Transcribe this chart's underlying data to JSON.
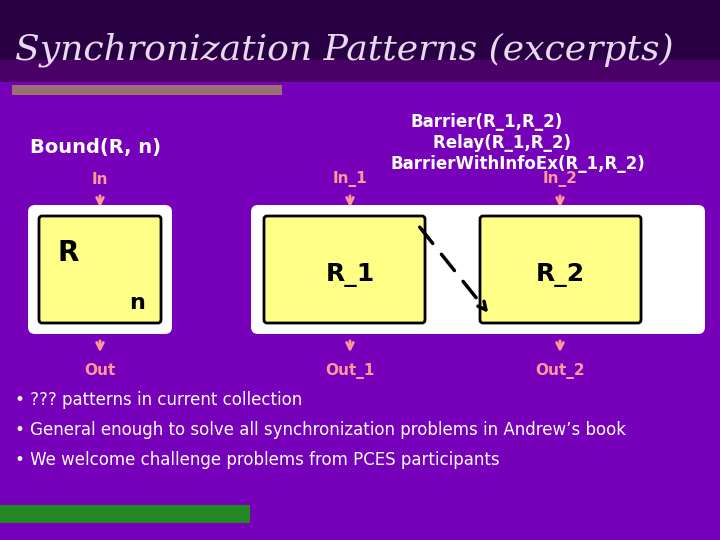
{
  "title": "Synchronization Patterns (excerpts)",
  "bg_color": "#7700bb",
  "title_color": "#e8d8f0",
  "title_fontsize": 26,
  "accent_bar_color": "#9B7070",
  "bound_label": "Bound(R, n)",
  "barrier_labels": [
    "Barrier(R_1,R_2)",
    "    Relay(R_1,R_2)",
    "BarrierWithInfoEx(R_1,R_2)"
  ],
  "arrow_color": "#ff9999",
  "box_outer_color": "#ffffff",
  "box_inner_color": "#ffff88",
  "box_text_color": "#000000",
  "bullet_texts": [
    "• ??? patterns in current collection",
    "• General enough to solve all synchronization problems in Andrew’s book",
    "• We welcome challenge problems from PCES participants"
  ],
  "in_label": "In",
  "out_label": "Out",
  "in1_label": "In_1",
  "in2_label": "In_2",
  "out1_label": "Out_1",
  "out2_label": "Out_2",
  "r_label": "R",
  "n_label": "n",
  "r1_label": "R_1",
  "r2_label": "R_2",
  "green_color": "#228822"
}
